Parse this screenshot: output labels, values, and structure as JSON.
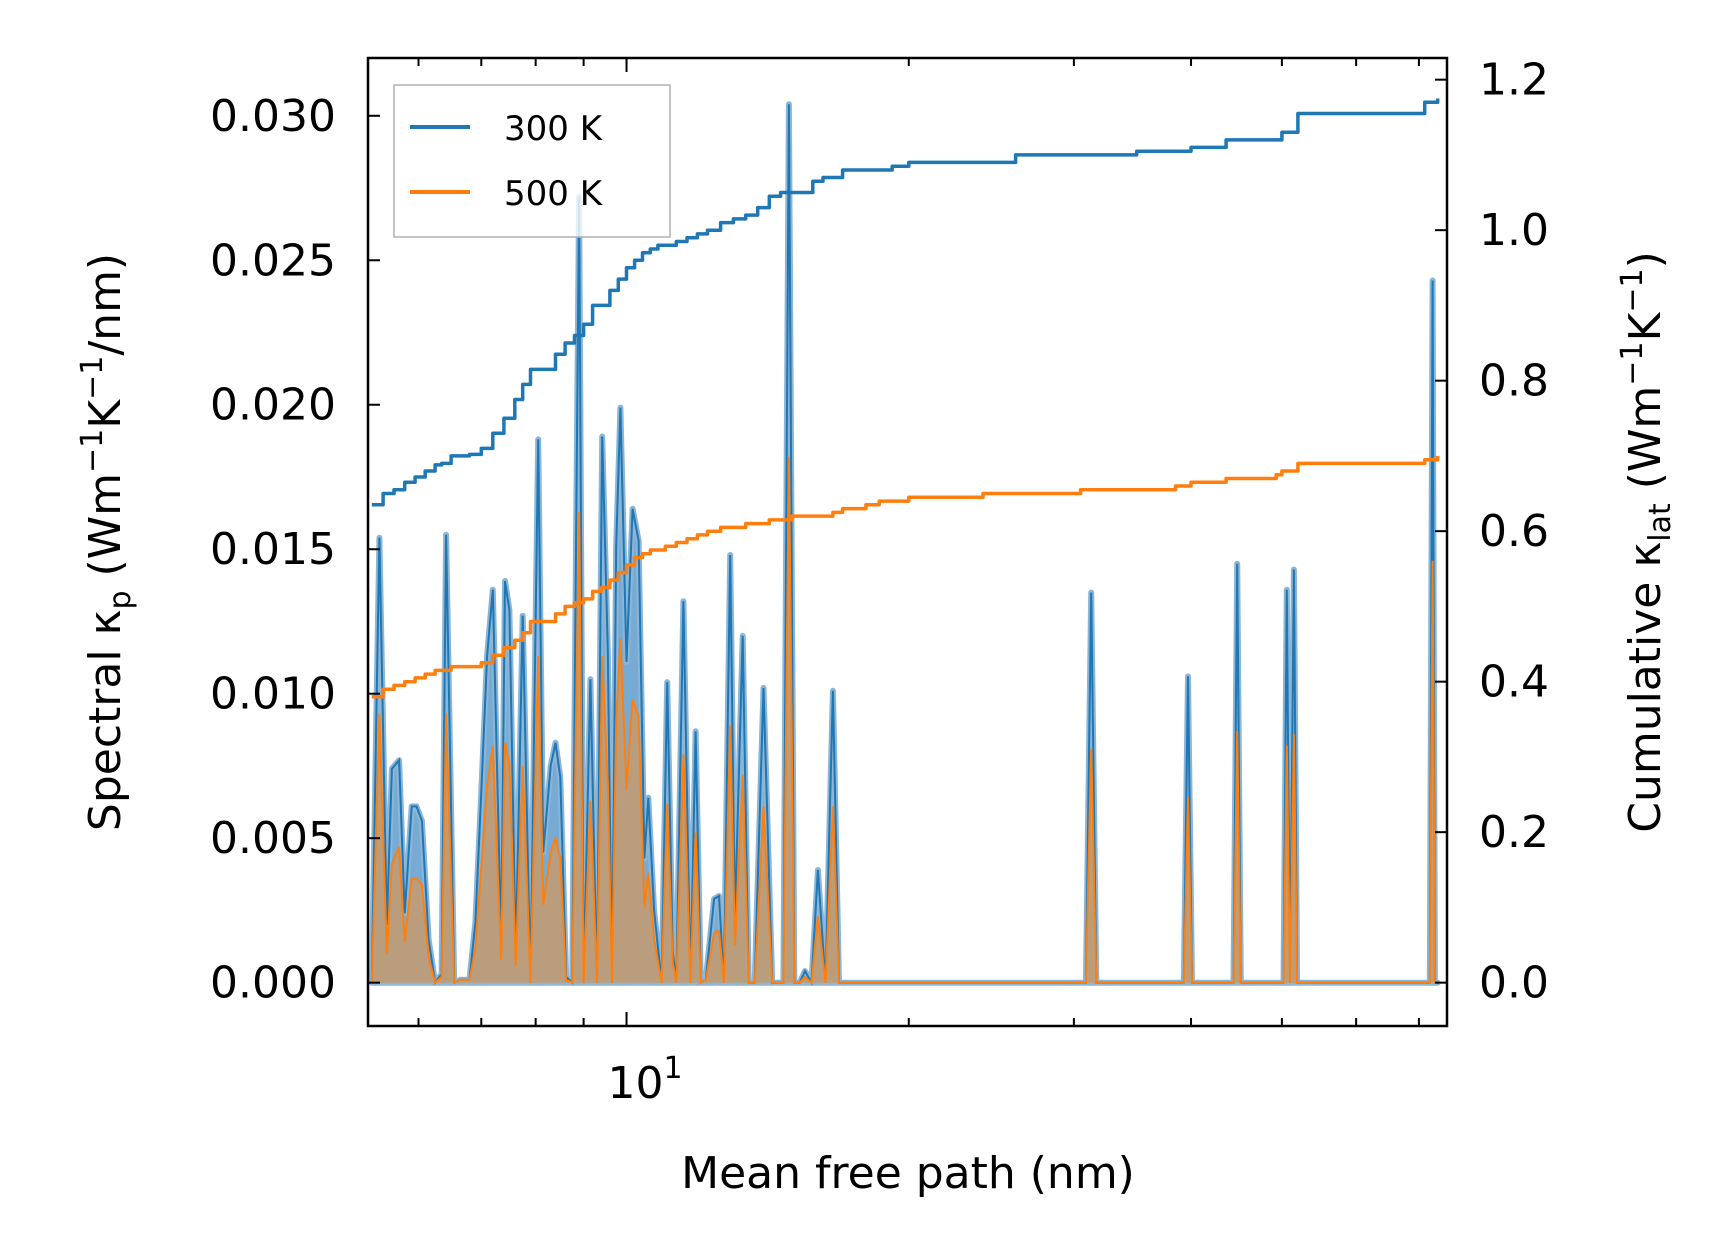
{
  "chart_data": {
    "type": "area",
    "xlabel": "Mean free path (nm)",
    "ylabel_left": {
      "main": "Spectral κ",
      "sub": "p",
      "unit_open": " (Wm",
      "exp1": "−1",
      "mid": "K",
      "exp2": "−1",
      "tail": "/nm)"
    },
    "ylabel_right": {
      "main": "Cumulative κ",
      "sub": "lat",
      "unit_open": " (Wm",
      "exp1": "−1",
      "mid": "K",
      "exp2": "−1",
      "tail": ")"
    },
    "xscale": "log",
    "xlim": [
      5.3,
      75
    ],
    "ylim_left": [
      -0.0015,
      0.032
    ],
    "ylim_right": [
      -0.0576,
      1.2288
    ],
    "x_tick_label": {
      "value": 10,
      "base": "10",
      "exp": "1"
    },
    "y_left_ticks": [
      "0.000",
      "0.005",
      "0.010",
      "0.015",
      "0.020",
      "0.025",
      "0.030"
    ],
    "y_left_tick_values": [
      0,
      0.005,
      0.01,
      0.015,
      0.02,
      0.025,
      0.03
    ],
    "y_right_ticks": [
      "0.0",
      "0.2",
      "0.4",
      "0.6",
      "0.8",
      "1.0",
      "1.2"
    ],
    "y_right_tick_values": [
      0,
      0.2,
      0.4,
      0.6,
      0.8,
      1.0,
      1.2
    ],
    "legend": {
      "position": "top-left",
      "entries": [
        "300 K",
        "500 K"
      ]
    },
    "colors": {
      "s300": "#1f77b4",
      "s500": "#ff7f0e",
      "fill300": "#4a8fc4",
      "fill500": "#c49a6c",
      "envelope": "#8cb5d6"
    },
    "spectral": {
      "x": [
        5.35,
        5.45,
        5.55,
        5.62,
        5.72,
        5.8,
        5.9,
        5.97,
        6.05,
        6.15,
        6.25,
        6.35,
        6.42,
        6.55,
        6.65,
        6.8,
        6.9,
        7.0,
        7.1,
        7.2,
        7.35,
        7.42,
        7.5,
        7.62,
        7.75,
        7.9,
        8.05,
        8.15,
        8.3,
        8.4,
        8.5,
        8.62,
        8.75,
        8.9,
        9.0,
        9.15,
        9.3,
        9.42,
        9.55,
        9.65,
        9.75,
        9.85,
        10.0,
        10.15,
        10.3,
        10.45,
        10.55,
        10.7,
        10.9,
        11.05,
        11.2,
        11.3,
        11.5,
        11.7,
        11.85,
        12.0,
        12.15,
        12.4,
        12.55,
        12.7,
        12.9,
        13.05,
        13.3,
        13.5,
        13.7,
        14.0,
        14.3,
        14.5,
        14.7,
        14.9,
        15.1,
        15.3,
        15.5,
        15.75,
        16.0,
        16.3,
        16.6,
        16.85,
        17.1,
        17.3,
        17.55,
        17.85,
        18.05,
        18.3,
        18.6,
        18.85,
        19.1,
        19.3,
        19.55,
        19.8,
        20.1,
        20.5,
        23.4,
        23.8,
        24.1,
        24.4,
        24.7,
        25.0,
        25.4,
        26.0,
        30.5,
        30.9,
        31.3,
        31.7,
        32.1,
        38.5,
        38.9,
        39.3,
        39.7,
        40.1,
        43.6,
        44.0,
        44.4,
        44.8,
        45.2,
        49.3,
        49.8,
        50.2,
        50.6,
        51.0,
        51.5,
        51.9,
        52.3,
        52.8,
        71.0,
        71.5,
        71.9,
        72.4,
        72.8,
        73.3
      ],
      "y300": [
        0,
        0.0154,
        0.002,
        0.0074,
        0.0077,
        0.0024,
        0.0061,
        0.0061,
        0.0056,
        0.0015,
        0,
        0.0003,
        0.0155,
        0,
        0.0001,
        0.0001,
        0.0021,
        0.0066,
        0.0113,
        0.0136,
        0.0014,
        0.0139,
        0.0129,
        0.001,
        0.0127,
        0,
        0.0188,
        0.0045,
        0.0075,
        0.0083,
        0.0071,
        0.0002,
        0,
        0.0272,
        0,
        0.0105,
        0,
        0.0189,
        0.0115,
        0,
        0.0151,
        0.0199,
        0.0111,
        0.0164,
        0.0153,
        0.0043,
        0.0064,
        0.0025,
        0,
        0.0104,
        0.0011,
        0,
        0.0132,
        0,
        0.0087,
        0,
        0.0001,
        0.0029,
        0.003,
        0,
        0.0148,
        0.0022,
        0.012,
        0,
        0,
        0.0102,
        0,
        0,
        0,
        0.0304,
        0,
        0,
        0.0004,
        0,
        0.0039,
        0,
        0.0101,
        0,
        0,
        0,
        0,
        0,
        0,
        0,
        0,
        0,
        0,
        0,
        0,
        0,
        0,
        0,
        0,
        0,
        0,
        0,
        0,
        0,
        0,
        0,
        0,
        0,
        0.0135,
        0,
        0,
        0,
        0,
        0,
        0.0106,
        0,
        0,
        0,
        0,
        0.0145,
        0,
        0,
        0,
        0,
        0.0136,
        0,
        0.0143,
        0,
        0,
        0,
        0,
        0,
        0,
        0.0243,
        0,
        0,
        0,
        0
      ],
      "y500": [
        0,
        0.0093,
        0.001,
        0.0041,
        0.0047,
        0.0014,
        0.0036,
        0.0036,
        0.0034,
        0.0009,
        0,
        0.0002,
        0.0093,
        0,
        0.0001,
        0.0001,
        0.0012,
        0.004,
        0.0068,
        0.0082,
        0.0008,
        0.0083,
        0.0076,
        0.0006,
        0.0075,
        0,
        0.0113,
        0.0027,
        0.0045,
        0.005,
        0.0043,
        0.0001,
        0,
        0.0163,
        0,
        0.0063,
        0,
        0.0113,
        0.0069,
        0,
        0.0091,
        0.0119,
        0.0067,
        0.0098,
        0.0092,
        0.0026,
        0.0038,
        0.0015,
        0,
        0.0062,
        0.0007,
        0,
        0.0079,
        0,
        0.0052,
        0,
        0.0001,
        0.0017,
        0.0018,
        0,
        0.0089,
        0.0013,
        0.0072,
        0,
        0,
        0.0061,
        0,
        0,
        0,
        0.0182,
        0,
        0,
        0.0002,
        0,
        0.0023,
        0,
        0.0061,
        0,
        0,
        0,
        0,
        0,
        0,
        0,
        0,
        0,
        0,
        0,
        0,
        0,
        0,
        0,
        0,
        0,
        0,
        0,
        0,
        0,
        0,
        0,
        0,
        0,
        0.0081,
        0,
        0,
        0,
        0,
        0,
        0.0064,
        0,
        0,
        0,
        0,
        0.0087,
        0,
        0,
        0,
        0,
        0.0082,
        0,
        0.0086,
        0,
        0,
        0,
        0,
        0,
        0,
        0.0146,
        0,
        0,
        0,
        0
      ]
    },
    "cumulative": {
      "x": [
        5.35,
        5.5,
        5.65,
        5.8,
        5.95,
        6.1,
        6.25,
        6.35,
        6.5,
        6.8,
        7.0,
        7.2,
        7.4,
        7.6,
        7.75,
        7.9,
        8.05,
        8.2,
        8.4,
        8.6,
        8.8,
        9.0,
        9.2,
        9.4,
        9.6,
        9.8,
        10.0,
        10.2,
        10.4,
        10.6,
        10.8,
        11.0,
        11.3,
        11.6,
        11.9,
        12.2,
        12.6,
        13.0,
        13.4,
        13.8,
        14.2,
        14.6,
        15.0,
        15.4,
        15.8,
        16.2,
        16.6,
        17.0,
        17.4,
        18.0,
        18.6,
        19.2,
        20.0,
        22.0,
        23.4,
        24.0,
        26.0,
        28.0,
        30.5,
        32.0,
        35.0,
        38.5,
        40.0,
        43.6,
        46.0,
        49.3,
        50.0,
        52.0,
        55.0,
        60.0,
        65.0,
        70.0,
        71.0,
        73.3
      ],
      "y300": [
        0.635,
        0.65,
        0.655,
        0.665,
        0.672,
        0.68,
        0.688,
        0.69,
        0.7,
        0.702,
        0.71,
        0.73,
        0.75,
        0.775,
        0.795,
        0.815,
        0.815,
        0.815,
        0.835,
        0.85,
        0.86,
        0.875,
        0.9,
        0.9,
        0.92,
        0.935,
        0.95,
        0.96,
        0.97,
        0.975,
        0.98,
        0.98,
        0.985,
        0.99,
        0.995,
        1.0,
        1.01,
        1.015,
        1.02,
        1.03,
        1.045,
        1.05,
        1.05,
        1.05,
        1.065,
        1.07,
        1.07,
        1.08,
        1.08,
        1.08,
        1.08,
        1.085,
        1.09,
        1.09,
        1.09,
        1.09,
        1.1,
        1.1,
        1.1,
        1.1,
        1.105,
        1.105,
        1.11,
        1.12,
        1.12,
        1.12,
        1.13,
        1.155,
        1.155,
        1.155,
        1.155,
        1.155,
        1.17,
        1.175
      ],
      "y500": [
        0.38,
        0.39,
        0.395,
        0.4,
        0.405,
        0.41,
        0.415,
        0.415,
        0.42,
        0.42,
        0.425,
        0.435,
        0.445,
        0.455,
        0.465,
        0.48,
        0.48,
        0.48,
        0.49,
        0.5,
        0.505,
        0.51,
        0.52,
        0.525,
        0.535,
        0.545,
        0.555,
        0.565,
        0.57,
        0.575,
        0.575,
        0.58,
        0.585,
        0.59,
        0.595,
        0.6,
        0.605,
        0.605,
        0.61,
        0.61,
        0.615,
        0.615,
        0.62,
        0.62,
        0.62,
        0.62,
        0.625,
        0.63,
        0.63,
        0.635,
        0.64,
        0.64,
        0.645,
        0.645,
        0.645,
        0.65,
        0.65,
        0.65,
        0.655,
        0.655,
        0.655,
        0.66,
        0.665,
        0.67,
        0.67,
        0.675,
        0.68,
        0.69,
        0.69,
        0.69,
        0.69,
        0.69,
        0.695,
        0.7
      ]
    }
  }
}
